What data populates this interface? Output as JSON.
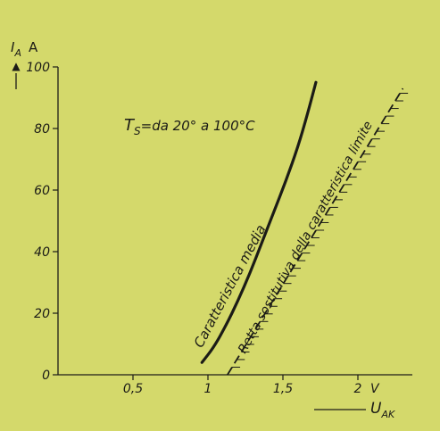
{
  "chart_data": {
    "type": "line",
    "colors": {
      "background": "#d4d96b",
      "ink": "#1b1b16"
    },
    "y_axis": {
      "symbol": "I",
      "subscript": "A",
      "unit": "A",
      "range": [
        0,
        100
      ],
      "ticks": [
        {
          "value": 0,
          "label": "0"
        },
        {
          "value": 20,
          "label": "20"
        },
        {
          "value": 40,
          "label": "40"
        },
        {
          "value": 60,
          "label": "60"
        },
        {
          "value": 80,
          "label": "80"
        },
        {
          "value": 100,
          "label": "100"
        }
      ]
    },
    "x_axis": {
      "symbol": "U",
      "subscript": "AK",
      "unit": "V",
      "range": [
        0,
        2.4
      ],
      "ticks": [
        {
          "value": 0.5,
          "label": "0,5"
        },
        {
          "value": 1.0,
          "label": "1"
        },
        {
          "value": 1.5,
          "label": "1,5"
        },
        {
          "value": 2.0,
          "label": "2"
        }
      ]
    },
    "annotation": {
      "symbol": "T",
      "subscript": "S",
      "text": "=da 20° a 100°C"
    },
    "series": [
      {
        "name": "Caratteristica media",
        "style": "solid",
        "x": [
          0.96,
          1.04,
          1.12,
          1.2,
          1.28,
          1.36,
          1.44,
          1.52,
          1.6,
          1.66,
          1.72
        ],
        "y": [
          4,
          9,
          16,
          24,
          33,
          43,
          53,
          63,
          74,
          84,
          95
        ]
      },
      {
        "name": "Retta sostitutiva della caratteristica limite",
        "style": "dashed-hatched",
        "x": [
          1.13,
          2.3
        ],
        "y": [
          0,
          93
        ]
      }
    ]
  }
}
